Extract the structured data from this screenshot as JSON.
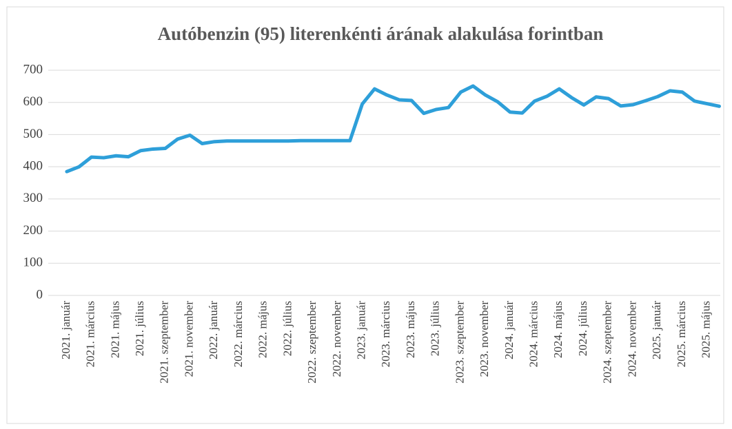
{
  "chart_data": {
    "type": "line",
    "title": "Autóbenzin (95) literenkénti árának alakulása forintban",
    "categories": [
      "2021. január",
      null,
      "2021. március",
      null,
      "2021. május",
      null,
      "2021. július",
      null,
      "2021. szeptember",
      null,
      "2021. november",
      null,
      "2022. január",
      null,
      "2022. március",
      null,
      "2022. május",
      null,
      "2022. július",
      null,
      "2022. szeptember",
      null,
      "2022. november",
      null,
      "2023. január",
      null,
      "2023. március",
      null,
      "2023. május",
      null,
      "2023. július",
      null,
      "2023. szeptember",
      null,
      "2023. november",
      null,
      "2024. január",
      null,
      "2024. március",
      null,
      "2024. május",
      null,
      "2024. július",
      null,
      "2024. szeptember",
      null,
      "2024. november",
      null,
      "2025. január",
      null,
      "2025. március",
      null,
      "2025. május",
      null
    ],
    "series": [
      {
        "name": "Autóbenzin (95)",
        "color": "#2e9fd9",
        "values": [
          385,
          400,
          430,
          428,
          434,
          431,
          450,
          455,
          457,
          486,
          498,
          472,
          478,
          480,
          480,
          480,
          480,
          480,
          480,
          481,
          481,
          481,
          481,
          481,
          595,
          642,
          623,
          608,
          606,
          566,
          578,
          584,
          632,
          651,
          623,
          602,
          570,
          567,
          604,
          619,
          642,
          615,
          592,
          617,
          612,
          589,
          593,
          605,
          618,
          636,
          632,
          604,
          596,
          588
        ]
      }
    ],
    "ylim": [
      0,
      700
    ],
    "yticks": [
      0,
      100,
      200,
      300,
      400,
      500,
      600,
      700
    ],
    "grid": true
  }
}
